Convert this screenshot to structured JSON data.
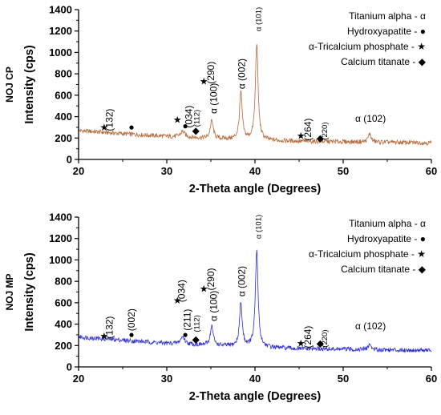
{
  "chart_data": [
    {
      "type": "line",
      "side_label": "NOJ CP",
      "xlabel": "2-Theta angle (Degrees)",
      "ylabel": "Intensity (cps)",
      "xlim": [
        20,
        60
      ],
      "ylim": [
        0,
        1400
      ],
      "xticks": [
        "20",
        "30",
        "40",
        "50",
        "60"
      ],
      "yticks": [
        "0",
        "200",
        "400",
        "600",
        "800",
        "1000",
        "1200",
        "1400"
      ],
      "line_color": "#b5693a",
      "grid": false,
      "legend_position": "top-right",
      "legend": [
        {
          "label": "Titanium alpha - α"
        },
        {
          "label": "Hydroxyapatite - ●"
        },
        {
          "label": "α-Tricalcium phosphate - ★"
        },
        {
          "label": "Calcium titanate - ◆"
        }
      ],
      "baseline": [
        [
          20,
          270
        ],
        [
          25,
          240
        ],
        [
          30,
          215
        ],
        [
          35,
          195
        ],
        [
          40,
          180
        ],
        [
          45,
          170
        ],
        [
          50,
          165
        ],
        [
          55,
          160
        ],
        [
          60,
          155
        ]
      ],
      "peaks": [
        {
          "x": 31.8,
          "y": 260,
          "w": 0.3
        },
        {
          "x": 35.1,
          "y": 360,
          "w": 0.2
        },
        {
          "x": 38.4,
          "y": 630,
          "w": 0.18
        },
        {
          "x": 40.2,
          "y": 1090,
          "w": 0.18
        },
        {
          "x": 53.0,
          "y": 240,
          "w": 0.2
        }
      ],
      "annotations": [
        {
          "text": "(132)",
          "x": 23.5,
          "y": 370,
          "rotate": -90,
          "small": false
        },
        {
          "text": "(034)",
          "x": 32.5,
          "y": 400,
          "rotate": -90,
          "small": false
        },
        {
          "text": "(290)",
          "x": 35.0,
          "y": 810,
          "rotate": -90,
          "small": false
        },
        {
          "text": "(112)",
          "x": 33.3,
          "y": 385,
          "rotate": -90,
          "small": true
        },
        {
          "text": "α (100)",
          "x": 35.3,
          "y": 570,
          "rotate": -90,
          "small": false
        },
        {
          "text": "α (002)",
          "x": 38.5,
          "y": 800,
          "rotate": -90,
          "small": false
        },
        {
          "text": "α (101)",
          "x": 40.3,
          "y": 1310,
          "rotate": -90,
          "small": true
        },
        {
          "text": "(264)",
          "x": 46.0,
          "y": 280,
          "rotate": -90,
          "small": false
        },
        {
          "text": "(220)",
          "x": 47.8,
          "y": 265,
          "rotate": -90,
          "small": true
        },
        {
          "text": "α (102)",
          "x": 53.1,
          "y": 380,
          "rotate": 0,
          "small": false
        }
      ],
      "markers": [
        {
          "symbol": "★",
          "x": 22.9,
          "y": 300
        },
        {
          "symbol": "●",
          "x": 26.0,
          "y": 305
        },
        {
          "symbol": "★",
          "x": 31.2,
          "y": 370
        },
        {
          "symbol": "●",
          "x": 32.1,
          "y": 315
        },
        {
          "symbol": "◆",
          "x": 33.3,
          "y": 270
        },
        {
          "symbol": "★",
          "x": 34.2,
          "y": 730
        },
        {
          "symbol": "★",
          "x": 45.2,
          "y": 220
        },
        {
          "symbol": "◆",
          "x": 47.4,
          "y": 200
        }
      ]
    },
    {
      "type": "line",
      "side_label": "NOJ MP",
      "xlabel": "2-Theta angle (Degrees)",
      "ylabel": "Intensity (cps)",
      "xlim": [
        20,
        60
      ],
      "ylim": [
        0,
        1400
      ],
      "xticks": [
        "20",
        "30",
        "40",
        "50",
        "60"
      ],
      "yticks": [
        "0",
        "200",
        "400",
        "600",
        "800",
        "1000",
        "1200",
        "1400"
      ],
      "line_color": "#2b2bd6",
      "grid": false,
      "legend_position": "top-right",
      "legend": [
        {
          "label": "Titanium alpha - α"
        },
        {
          "label": "Hydroxyapatite - ●"
        },
        {
          "label": "α-Tricalcium phosphate - ★"
        },
        {
          "label": "Calcium titanate - ◆"
        }
      ],
      "baseline": [
        [
          20,
          280
        ],
        [
          25,
          250
        ],
        [
          30,
          220
        ],
        [
          35,
          200
        ],
        [
          40,
          185
        ],
        [
          45,
          170
        ],
        [
          50,
          165
        ],
        [
          55,
          160
        ],
        [
          60,
          155
        ]
      ],
      "peaks": [
        {
          "x": 31.8,
          "y": 280,
          "w": 0.3
        },
        {
          "x": 35.1,
          "y": 380,
          "w": 0.2
        },
        {
          "x": 38.4,
          "y": 600,
          "w": 0.18
        },
        {
          "x": 40.2,
          "y": 1090,
          "w": 0.18
        },
        {
          "x": 53.0,
          "y": 210,
          "w": 0.2
        }
      ],
      "annotations": [
        {
          "text": "(132)",
          "x": 23.5,
          "y": 370,
          "rotate": -90,
          "small": false
        },
        {
          "text": "(002)",
          "x": 26.0,
          "y": 440,
          "rotate": -90,
          "small": false
        },
        {
          "text": "(034)",
          "x": 31.7,
          "y": 710,
          "rotate": -90,
          "small": false
        },
        {
          "text": "(290)",
          "x": 35.0,
          "y": 820,
          "rotate": -90,
          "small": false
        },
        {
          "text": "(211)",
          "x": 32.3,
          "y": 440,
          "rotate": -90,
          "small": false
        },
        {
          "text": "(112)",
          "x": 33.3,
          "y": 405,
          "rotate": -90,
          "small": true
        },
        {
          "text": "α (100)",
          "x": 35.3,
          "y": 570,
          "rotate": -90,
          "small": false
        },
        {
          "text": "α (002)",
          "x": 38.5,
          "y": 800,
          "rotate": -90,
          "small": false
        },
        {
          "text": "α (101)",
          "x": 40.3,
          "y": 1310,
          "rotate": -90,
          "small": true
        },
        {
          "text": "(264)",
          "x": 46.0,
          "y": 280,
          "rotate": -90,
          "small": false
        },
        {
          "text": "(220)",
          "x": 47.8,
          "y": 265,
          "rotate": -90,
          "small": true
        },
        {
          "text": "α (102)",
          "x": 53.1,
          "y": 380,
          "rotate": 0,
          "small": false
        }
      ],
      "markers": [
        {
          "symbol": "★",
          "x": 22.9,
          "y": 290
        },
        {
          "symbol": "●",
          "x": 26.0,
          "y": 305
        },
        {
          "symbol": "★",
          "x": 31.2,
          "y": 620
        },
        {
          "symbol": "●",
          "x": 32.1,
          "y": 305
        },
        {
          "symbol": "◆",
          "x": 33.3,
          "y": 260
        },
        {
          "symbol": "★",
          "x": 34.2,
          "y": 730
        },
        {
          "symbol": "★",
          "x": 45.2,
          "y": 220
        },
        {
          "symbol": "◆",
          "x": 47.4,
          "y": 220
        }
      ]
    }
  ]
}
